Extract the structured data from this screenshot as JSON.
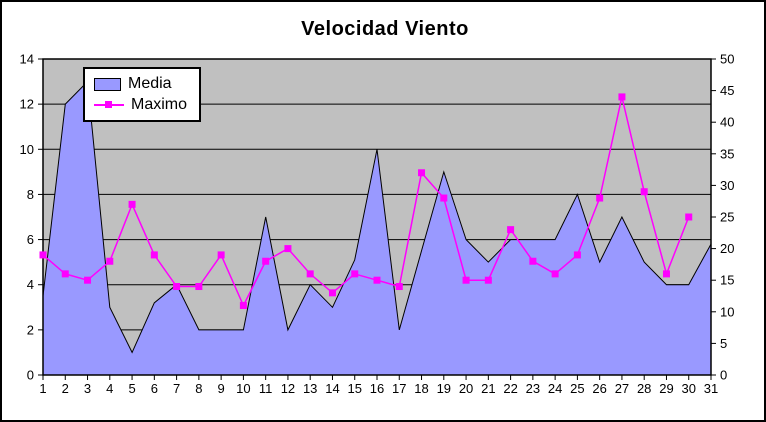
{
  "title": "Velocidad Viento",
  "legend": {
    "items": [
      {
        "label": "Media"
      },
      {
        "label": "Maximo"
      }
    ]
  },
  "chart_data": {
    "type": "area",
    "title": "Velocidad Viento",
    "x_categories": [
      1,
      2,
      3,
      4,
      5,
      6,
      7,
      8,
      9,
      10,
      11,
      12,
      13,
      14,
      15,
      16,
      17,
      18,
      19,
      20,
      21,
      22,
      23,
      24,
      25,
      26,
      27,
      28,
      29,
      30,
      31
    ],
    "series": [
      {
        "name": "Media",
        "type": "area",
        "axis": "left",
        "color": "#9999FF",
        "values": [
          3.5,
          12,
          13,
          3,
          1,
          3.2,
          4,
          2,
          2,
          2,
          7,
          2,
          4,
          3,
          5.1,
          10,
          2,
          5.5,
          9,
          6,
          5,
          6,
          6,
          6,
          8,
          5,
          7,
          5,
          4,
          4,
          5.8
        ]
      },
      {
        "name": "Maximo",
        "type": "line",
        "axis": "right",
        "color": "#FF00FF",
        "marker": "square",
        "values": [
          19,
          16,
          15,
          18,
          27,
          19,
          14,
          14,
          19,
          11,
          18,
          20,
          16,
          13,
          16,
          15,
          14,
          32,
          28,
          15,
          15,
          23,
          18,
          16,
          19,
          28,
          44,
          29,
          16,
          25,
          null
        ]
      }
    ],
    "left_axis": {
      "min": 0,
      "max": 14,
      "step": 2
    },
    "right_axis": {
      "min": 0,
      "max": 50,
      "step": 5
    },
    "plot_background": "#C0C0C0",
    "outline_color": "#000000",
    "grid": "horizontal",
    "legend_position": "top-left-inside"
  }
}
